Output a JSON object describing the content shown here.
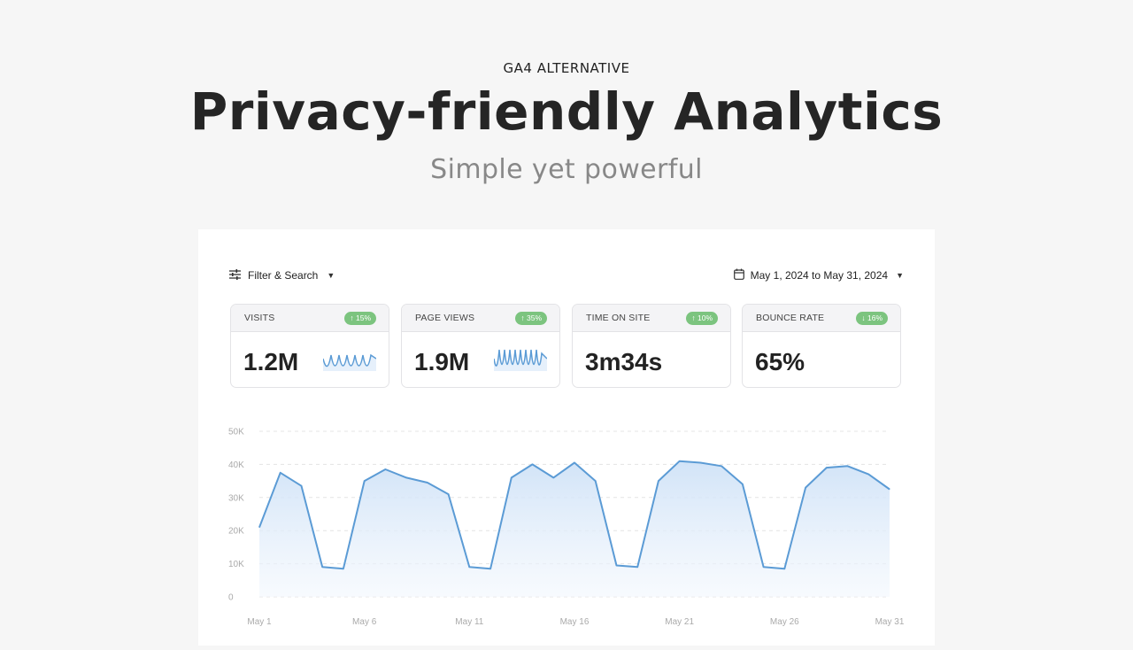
{
  "hero": {
    "eyebrow": "GA4 ALTERNATIVE",
    "headline": "Privacy-friendly Analytics",
    "subhead": "Simple yet powerful"
  },
  "toolbar": {
    "filter_label": "Filter & Search",
    "filter_icon": "sliders-icon",
    "date_range_label": "May 1, 2024 to May 31, 2024",
    "date_icon": "calendar-icon"
  },
  "metrics": [
    {
      "label": "VISITS",
      "badge": "↑ 15%",
      "value": "1.2M",
      "has_sparkline": true
    },
    {
      "label": "PAGE VIEWS",
      "badge": "↑ 35%",
      "value": "1.9M",
      "has_sparkline": true
    },
    {
      "label": "TIME ON SITE",
      "badge": "↑ 10%",
      "value": "3m34s",
      "has_sparkline": false
    },
    {
      "label": "BOUNCE RATE",
      "badge": "↓ 16%",
      "value": "65%",
      "has_sparkline": false
    }
  ],
  "colors": {
    "accent_line": "#5b9bd5",
    "badge_green": "#7cc47f",
    "area_fill": "#dbe9f8"
  },
  "chart_data": {
    "type": "area",
    "x": [
      "May 1",
      "May 2",
      "May 3",
      "May 4",
      "May 5",
      "May 6",
      "May 7",
      "May 8",
      "May 9",
      "May 10",
      "May 11",
      "May 12",
      "May 13",
      "May 14",
      "May 15",
      "May 16",
      "May 17",
      "May 18",
      "May 19",
      "May 20",
      "May 21",
      "May 22",
      "May 23",
      "May 24",
      "May 25",
      "May 26",
      "May 27",
      "May 28",
      "May 29",
      "May 30",
      "May 31"
    ],
    "series": [
      {
        "values": [
          21000,
          37500,
          33500,
          9000,
          8500,
          35000,
          38500,
          36000,
          34500,
          31000,
          9000,
          8500,
          36000,
          40000,
          36000,
          40500,
          35000,
          9500,
          9000,
          35000,
          41000,
          40500,
          39500,
          34000,
          9000,
          8500,
          33000,
          39000,
          39500,
          37000,
          32500
        ]
      }
    ],
    "xticks": [
      "May 1",
      "May 6",
      "May 11",
      "May 16",
      "May 21",
      "May 26",
      "May 31"
    ],
    "yticks": [
      "0",
      "10K",
      "20K",
      "30K",
      "40K",
      "50K"
    ],
    "ylim": [
      0,
      50000
    ],
    "grid": true
  }
}
